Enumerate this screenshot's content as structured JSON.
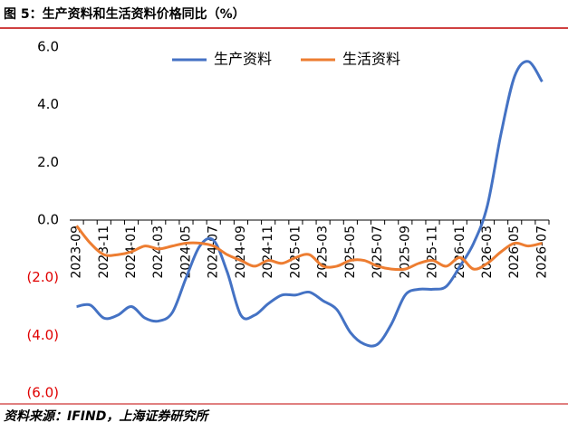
{
  "header": {
    "title": "图 5：生产资料和生活资料价格同比（%）"
  },
  "chart_data": {
    "type": "line",
    "categories": [
      "2023-09",
      null,
      "2023-11",
      null,
      "2024-01",
      null,
      "2024-03",
      null,
      "2024-05",
      null,
      "2024-07",
      null,
      "2024-09",
      null,
      "2024-11",
      null,
      "2025-01",
      null,
      "2025-03",
      null,
      "2025-05",
      null,
      "2025-07",
      null,
      "2025-09",
      null,
      "2025-11",
      null,
      "2026-01",
      null,
      "2026-03",
      null,
      "2026-05",
      null,
      "2026-07"
    ],
    "series": [
      {
        "name": "生产资料",
        "color": "#4472c4",
        "values": [
          -3.0,
          -2.95,
          -3.4,
          -3.3,
          -3.0,
          -3.4,
          -3.5,
          -3.2,
          -2.0,
          -0.9,
          -0.7,
          -1.8,
          -3.3,
          -3.3,
          -2.9,
          -2.6,
          -2.6,
          -2.5,
          -2.8,
          -3.1,
          -3.9,
          -4.3,
          -4.3,
          -3.6,
          -2.6,
          -2.4,
          -2.4,
          -2.3,
          -1.6,
          -0.8,
          0.5,
          3.0,
          5.0,
          5.5,
          4.8
        ]
      },
      {
        "name": "生活资料",
        "color": "#ed7d31",
        "values": [
          -0.2,
          -0.8,
          -1.2,
          -1.2,
          -1.1,
          -0.9,
          -1.0,
          -0.9,
          -0.8,
          -0.8,
          -0.9,
          -1.2,
          -1.4,
          -1.6,
          -1.4,
          -1.5,
          -1.3,
          -1.2,
          -1.6,
          -1.6,
          -1.4,
          -1.4,
          -1.6,
          -1.7,
          -1.7,
          -1.5,
          -1.4,
          -1.6,
          -1.3,
          -1.7,
          -1.5,
          -1.1,
          -0.8,
          -0.9,
          -0.8
        ]
      }
    ],
    "ylim": [
      -6,
      6
    ],
    "yticks": [
      {
        "value": 6,
        "label": "6.0"
      },
      {
        "value": 4,
        "label": "4.0"
      },
      {
        "value": 2,
        "label": "2.0"
      },
      {
        "value": 0,
        "label": "0.0"
      },
      {
        "value": -2,
        "label": "(2.0)"
      },
      {
        "value": -4,
        "label": "(4.0)"
      },
      {
        "value": -6,
        "label": "(6.0)"
      }
    ],
    "negative_label_color": "#e00000",
    "legend": "top"
  },
  "footer": {
    "source": "资料来源：IFIND，上海证券研究所"
  }
}
